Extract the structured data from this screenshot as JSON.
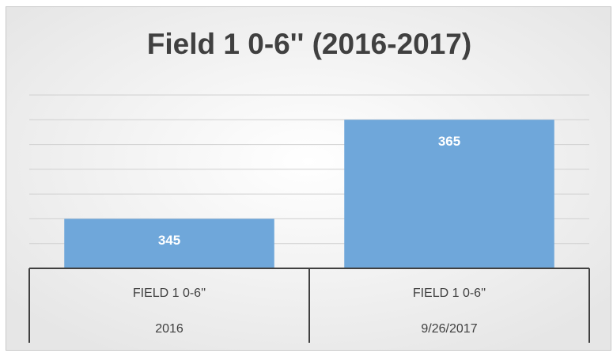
{
  "chart_data": {
    "type": "bar",
    "title": "Field 1 0-6'' (2016-2017)",
    "categories": [
      [
        "FIELD 1 0-6''",
        "2016"
      ],
      [
        "FIELD 1 0-6''",
        "9/26/2017"
      ]
    ],
    "values": [
      345,
      365
    ],
    "color": "#6fa7da",
    "ylim": [
      335,
      370
    ],
    "yticks": [
      335,
      340,
      345,
      350,
      355,
      360,
      365,
      370
    ],
    "grid": true
  }
}
